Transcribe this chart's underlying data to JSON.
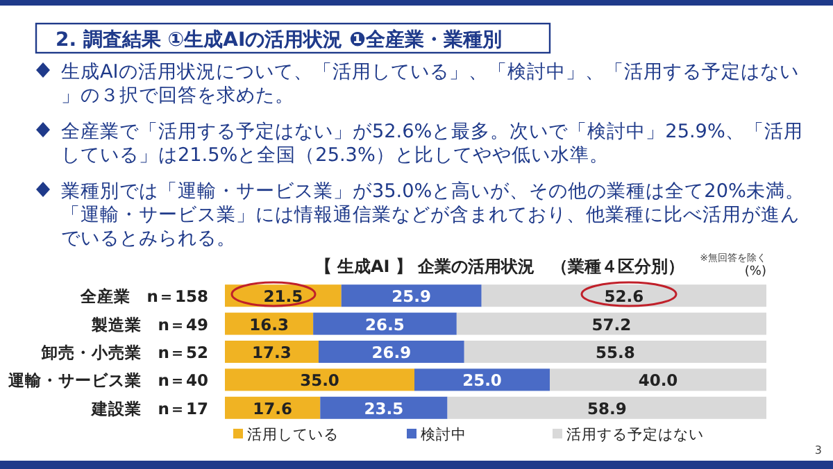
{
  "chart_data": {
    "type": "bar",
    "orientation": "horizontal",
    "stacked": true,
    "title": "2. 調査結果 ①生成AIの活用状況 ❶全産業・業種別",
    "subtitle": "【 生成AI 】 企業の活用状況　（業種４区分別）",
    "categories": [
      "全産業　n＝158",
      "製造業　n＝49",
      "卸売・小売業　n＝52",
      "運輸・サービス業　n＝40",
      "建設業　n＝17"
    ],
    "series": [
      {
        "name": "活用している",
        "color": "#f0b323",
        "values": [
          21.5,
          16.3,
          17.3,
          35.0,
          17.6
        ],
        "value_labels": [
          "21.5",
          "16.3",
          "17.3",
          "35.0",
          "17.6"
        ]
      },
      {
        "name": "検討中",
        "color": "#4a6bc6",
        "values": [
          25.9,
          26.5,
          26.9,
          25.0,
          23.5
        ],
        "value_labels": [
          "25.9",
          "26.5",
          "26.9",
          "25.0",
          "23.5"
        ]
      },
      {
        "name": "活用する予定はない",
        "color": "#d9d9d9",
        "values": [
          52.6,
          57.2,
          55.8,
          40.0,
          58.9
        ],
        "value_labels": [
          "52.6",
          "57.2",
          "55.8",
          "40.0",
          "58.9"
        ]
      }
    ],
    "legend": "bottom",
    "annotations": [
      "生成AIの活用状況について、「活用している」、「検討中」、「活用する予定はない」の３択で回答を求めた。",
      "全産業で「活用する予定はない」が52.6%と最多。次いで「検討中」25.9%、「活用している」は21.5%と全国（25.3%）と比してやや低い水準。",
      "業種別では「運輸・サービス業」が35.0%と高いが、その他の業種は全て20%未満。「運輸・サービス業」には情報通信業などが含まれており、他業種に比べ活用が進んでいるとみられる。",
      "※無回答を除く",
      "(%)",
      "3"
    ]
  }
}
